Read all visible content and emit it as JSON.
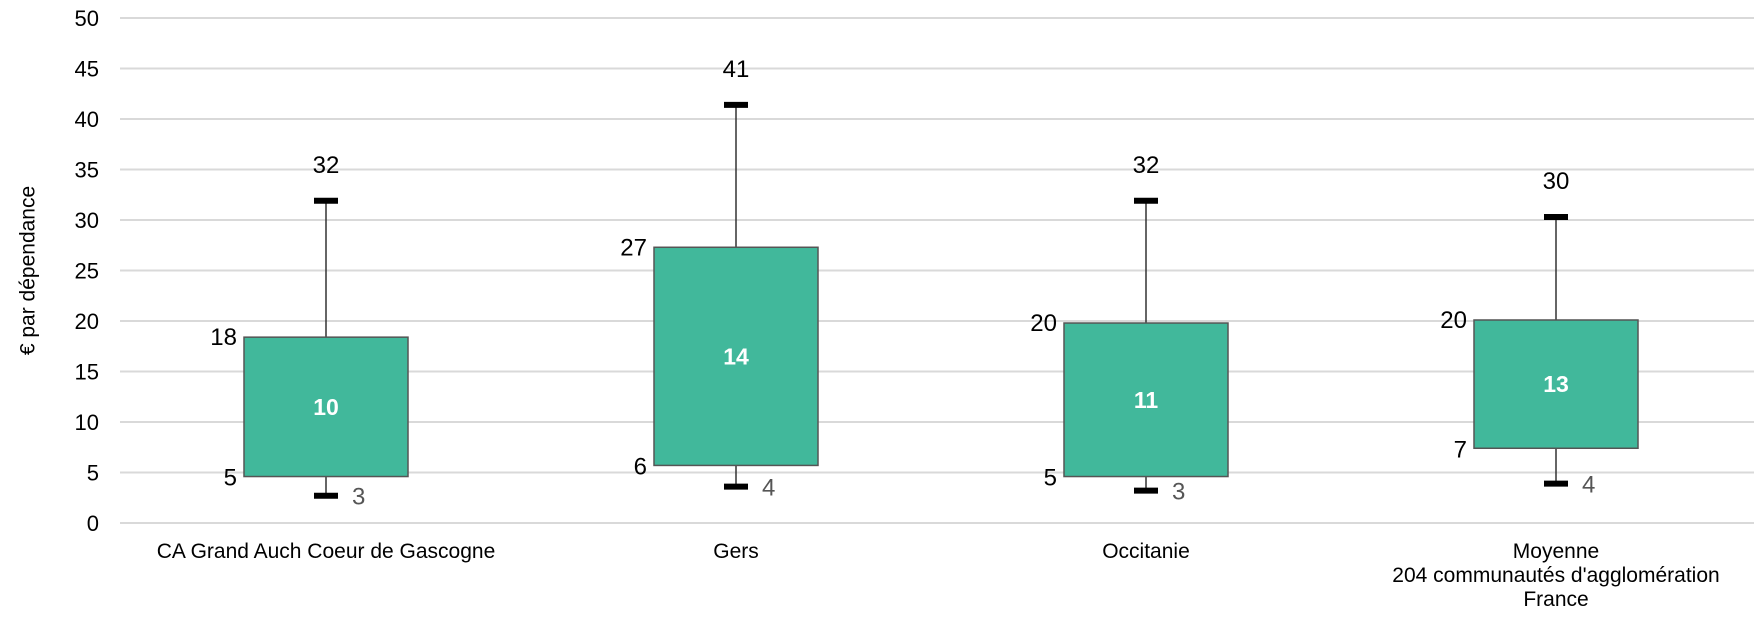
{
  "chart_data": {
    "type": "box",
    "ylabel": "€  par dépendance",
    "ylim": [
      0,
      50
    ],
    "yticks": [
      0,
      5,
      10,
      15,
      20,
      25,
      30,
      35,
      40,
      45,
      50
    ],
    "grid": true,
    "colors": {
      "box": "#41b89b",
      "box_border": "#555555",
      "grid": "#d9d9d9",
      "whisker": "#000000"
    },
    "categories": [
      {
        "label_lines": [
          "CA Grand Auch Coeur de Gascogne"
        ],
        "min": 3,
        "q1": 5,
        "median": 10,
        "q3": 18,
        "max": 32,
        "q1_value": 4.6,
        "q3_value": 18.4,
        "min_value": 2.7,
        "max_value": 31.9
      },
      {
        "label_lines": [
          "Gers"
        ],
        "min": 4,
        "q1": 6,
        "median": 14,
        "q3": 27,
        "max": 41,
        "q1_value": 5.7,
        "q3_value": 27.3,
        "min_value": 3.6,
        "max_value": 41.4
      },
      {
        "label_lines": [
          "Occitanie"
        ],
        "min": 3,
        "q1": 5,
        "median": 11,
        "q3": 20,
        "max": 32,
        "q1_value": 4.6,
        "q3_value": 19.8,
        "min_value": 3.2,
        "max_value": 31.9
      },
      {
        "label_lines": [
          "Moyenne",
          "204 communautés d'agglomération",
          "France"
        ],
        "min": 4,
        "q1": 7,
        "median": 13,
        "q3": 20,
        "max": 30,
        "q1_value": 7.4,
        "q3_value": 20.1,
        "min_value": 3.9,
        "max_value": 30.3
      }
    ]
  }
}
